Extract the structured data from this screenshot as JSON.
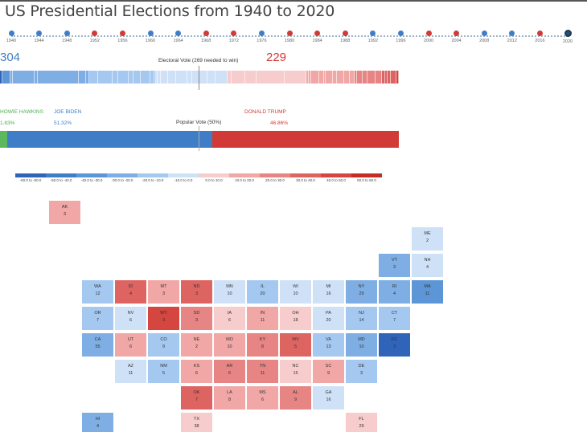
{
  "title": "US Presidential Elections from 1940 to 2020",
  "timeline": [
    {
      "year": "1940",
      "color": "#3f7ec6"
    },
    {
      "year": "1944",
      "color": "#3f7ec6"
    },
    {
      "year": "1948",
      "color": "#3f7ec6"
    },
    {
      "year": "1952",
      "color": "#d13a36"
    },
    {
      "year": "1956",
      "color": "#d13a36"
    },
    {
      "year": "1960",
      "color": "#3f7ec6"
    },
    {
      "year": "1964",
      "color": "#3f7ec6"
    },
    {
      "year": "1968",
      "color": "#d13a36"
    },
    {
      "year": "1972",
      "color": "#d13a36"
    },
    {
      "year": "1976",
      "color": "#3f7ec6"
    },
    {
      "year": "1980",
      "color": "#d13a36"
    },
    {
      "year": "1984",
      "color": "#d13a36"
    },
    {
      "year": "1988",
      "color": "#d13a36"
    },
    {
      "year": "1992",
      "color": "#3f7ec6"
    },
    {
      "year": "1996",
      "color": "#3f7ec6"
    },
    {
      "year": "2000",
      "color": "#d13a36"
    },
    {
      "year": "2004",
      "color": "#d13a36"
    },
    {
      "year": "2008",
      "color": "#3f7ec6"
    },
    {
      "year": "2012",
      "color": "#3f7ec6"
    },
    {
      "year": "2016",
      "color": "#d13a36"
    },
    {
      "year": "2020",
      "color": "#2a4d6e",
      "selected": true
    }
  ],
  "electoral": {
    "dem_votes": "304",
    "rep_votes": "229",
    "label": "Electoral Vote (269 needed to win)"
  },
  "popular": {
    "label": "Popular Vote (50%)",
    "third_name": "HOWIE HAWKINS",
    "third_pct": "1.83%",
    "dem_name": "JOE BIDEN",
    "dem_pct": "51.32%",
    "rep_name": "DONALD TRUMP",
    "rep_pct": "46.86%",
    "third_share": 1.83,
    "dem_share": 51.32,
    "rep_share": 46.86
  },
  "legend": [
    {
      "label": "-60.0 to -50.0",
      "color": "#2f64b8"
    },
    {
      "label": "-50.0 to -40.0",
      "color": "#3f7ec6"
    },
    {
      "label": "-40.0 to -30.0",
      "color": "#5c96d6"
    },
    {
      "label": "-30.0 to -20.0",
      "color": "#7eaee4"
    },
    {
      "label": "-20.0 to -10.0",
      "color": "#a4c8f0"
    },
    {
      "label": "-10.0 to 0.0",
      "color": "#cfe1f7"
    },
    {
      "label": "0.0 to 10.0",
      "color": "#f6cccc"
    },
    {
      "label": "10.0 to 20.0",
      "color": "#f0a7a6"
    },
    {
      "label": "20.0 to 30.0",
      "color": "#e68583"
    },
    {
      "label": "30.0 to 40.0",
      "color": "#dd6461"
    },
    {
      "label": "40.0 to 50.0",
      "color": "#d4463f"
    },
    {
      "label": "50.0 to 60.0",
      "color": "#c42c26"
    }
  ],
  "states": [
    {
      "ab": "AK",
      "ev": "3",
      "color": "#f0a7a6"
    },
    {
      "ab": "ME",
      "ev": "2",
      "color": "#cfe1f7"
    },
    {
      "ab": "VT",
      "ev": "3",
      "color": "#7eaee4"
    },
    {
      "ab": "NH",
      "ev": "4",
      "color": "#cfe1f7"
    },
    {
      "ab": "WA",
      "ev": "12",
      "color": "#a4c8f0"
    },
    {
      "ab": "ID",
      "ev": "4",
      "color": "#dd6461"
    },
    {
      "ab": "MT",
      "ev": "3",
      "color": "#f0a7a6"
    },
    {
      "ab": "ND",
      "ev": "3",
      "color": "#dd6461"
    },
    {
      "ab": "MN",
      "ev": "10",
      "color": "#cfe1f7"
    },
    {
      "ab": "IL",
      "ev": "20",
      "color": "#a4c8f0"
    },
    {
      "ab": "WI",
      "ev": "10",
      "color": "#cfe1f7"
    },
    {
      "ab": "MI",
      "ev": "16",
      "color": "#cfe1f7"
    },
    {
      "ab": "NY",
      "ev": "29",
      "color": "#7eaee4"
    },
    {
      "ab": "RI",
      "ev": "4",
      "color": "#7eaee4"
    },
    {
      "ab": "MA",
      "ev": "11",
      "color": "#5c96d6"
    },
    {
      "ab": "OR",
      "ev": "7",
      "color": "#a4c8f0"
    },
    {
      "ab": "NV",
      "ev": "6",
      "color": "#cfe1f7"
    },
    {
      "ab": "WY",
      "ev": "3",
      "color": "#d4463f"
    },
    {
      "ab": "SD",
      "ev": "3",
      "color": "#e68583"
    },
    {
      "ab": "IA",
      "ev": "6",
      "color": "#f6cccc"
    },
    {
      "ab": "IN",
      "ev": "11",
      "color": "#f0a7a6"
    },
    {
      "ab": "OH",
      "ev": "18",
      "color": "#f6cccc"
    },
    {
      "ab": "PA",
      "ev": "20",
      "color": "#cfe1f7"
    },
    {
      "ab": "NJ",
      "ev": "14",
      "color": "#a4c8f0"
    },
    {
      "ab": "CT",
      "ev": "7",
      "color": "#a4c8f0"
    },
    {
      "ab": "CA",
      "ev": "55",
      "color": "#7eaee4"
    },
    {
      "ab": "UT",
      "ev": "6",
      "color": "#f0a7a6"
    },
    {
      "ab": "CO",
      "ev": "9",
      "color": "#a4c8f0"
    },
    {
      "ab": "NE",
      "ev": "2",
      "color": "#f0a7a6"
    },
    {
      "ab": "MO",
      "ev": "10",
      "color": "#f0a7a6"
    },
    {
      "ab": "KY",
      "ev": "8",
      "color": "#e68583"
    },
    {
      "ab": "WV",
      "ev": "5",
      "color": "#dd6461"
    },
    {
      "ab": "VA",
      "ev": "13",
      "color": "#a4c8f0"
    },
    {
      "ab": "MD",
      "ev": "10",
      "color": "#7eaee4"
    },
    {
      "ab": "DC",
      "ev": "3",
      "color": "#2f64b8"
    },
    {
      "ab": "AZ",
      "ev": "11",
      "color": "#cfe1f7"
    },
    {
      "ab": "NM",
      "ev": "5",
      "color": "#a4c8f0"
    },
    {
      "ab": "KS",
      "ev": "6",
      "color": "#f0a7a6"
    },
    {
      "ab": "AR",
      "ev": "6",
      "color": "#e68583"
    },
    {
      "ab": "TN",
      "ev": "11",
      "color": "#e68583"
    },
    {
      "ab": "NC",
      "ev": "15",
      "color": "#f6cccc"
    },
    {
      "ab": "SC",
      "ev": "9",
      "color": "#f0a7a6"
    },
    {
      "ab": "DE",
      "ev": "3",
      "color": "#a4c8f0"
    },
    {
      "ab": "OK",
      "ev": "7",
      "color": "#dd6461"
    },
    {
      "ab": "LA",
      "ev": "8",
      "color": "#f0a7a6"
    },
    {
      "ab": "MS",
      "ev": "6",
      "color": "#f0a7a6"
    },
    {
      "ab": "AL",
      "ev": "9",
      "color": "#e68583"
    },
    {
      "ab": "GA",
      "ev": "16",
      "color": "#cfe1f7"
    },
    {
      "ab": "HI",
      "ev": "4",
      "color": "#7eaee4"
    },
    {
      "ab": "TX",
      "ev": "38",
      "color": "#f6cccc"
    },
    {
      "ab": "FL",
      "ev": "29",
      "color": "#f6cccc"
    }
  ]
}
